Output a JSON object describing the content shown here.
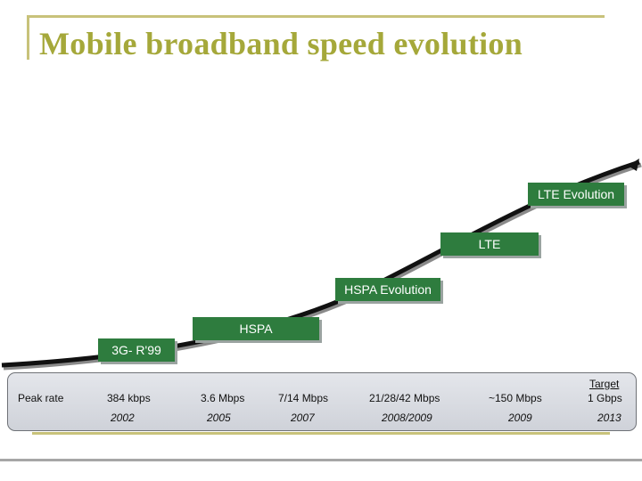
{
  "slide": {
    "title": "Mobile broadband speed evolution"
  },
  "technologies": [
    {
      "id": "3g-r99",
      "label": "3G- R'99"
    },
    {
      "id": "hspa",
      "label": "HSPA"
    },
    {
      "id": "hspa-evolution",
      "label": "HSPA Evolution"
    },
    {
      "id": "lte",
      "label": "LTE"
    },
    {
      "id": "lte-evolution",
      "label": "LTE Evolution"
    }
  ],
  "table": {
    "row_label": "Peak rate",
    "rates": [
      "384 kbps",
      "3.6 Mbps",
      "7/14 Mbps",
      "21/28/42 Mbps",
      "~150 Mbps"
    ],
    "target_label": "Target",
    "target_rate": "1 Gbps",
    "years": [
      "2002",
      "2005",
      "2007",
      "2008/2009",
      "2009",
      "2013"
    ]
  },
  "colors": {
    "title": "#a5a83a",
    "accent_line": "#c8c27a",
    "step_box": "#2e7c3e",
    "curve": "#111111"
  }
}
